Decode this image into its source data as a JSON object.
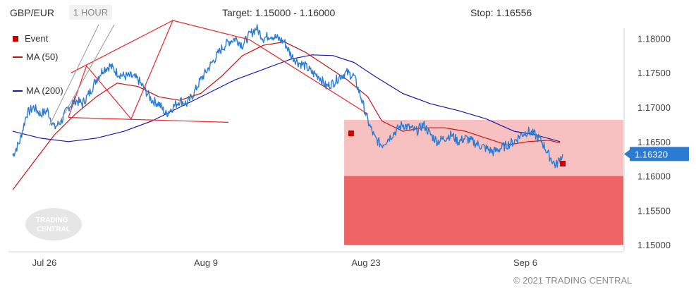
{
  "header": {
    "symbol": "GBP/EUR",
    "timeframe": "1 HOUR",
    "target": "Target: 1.15000 - 1.16000",
    "stop": "Stop: 1.16556"
  },
  "legend": {
    "event": "Event",
    "ma50": "MA (50)",
    "ma200": "MA (200)"
  },
  "watermark": {
    "line1": "TRADING",
    "line2": "CENTRAL"
  },
  "copyright": "© 2021 TRADING CENTRAL",
  "colors": {
    "price": "#2a7bd1",
    "ma50": "#cc1111",
    "ma200": "#1a1aaa",
    "pattern": "#e8262a",
    "stop_zone": "#f7c1c1",
    "target_zone": "#ee6363",
    "event": "#cc0000",
    "badge": "#2a7bd1"
  },
  "chart_data": {
    "type": "line",
    "y_ticks": [
      "1.18000",
      "1.17500",
      "1.17000",
      "1.16500",
      "1.16000",
      "1.15500",
      "1.15000"
    ],
    "x_ticks": [
      "Jul 26",
      "Aug 9",
      "Aug 23",
      "Sep 6"
    ],
    "ylim": [
      1.1495,
      1.1825
    ],
    "last_price": "1.16320",
    "stop_zone": [
      1.16,
      1.16815
    ],
    "target_zone": [
      1.15,
      1.16
    ],
    "series": [
      {
        "name": "Price",
        "points": [
          [
            0,
            1.163
          ],
          [
            5,
            1.165
          ],
          [
            10,
            1.169
          ],
          [
            15,
            1.17
          ],
          [
            20,
            1.169
          ],
          [
            25,
            1.1695
          ],
          [
            30,
            1.167
          ],
          [
            35,
            1.168
          ],
          [
            40,
            1.17
          ],
          [
            45,
            1.171
          ],
          [
            50,
            1.1705
          ],
          [
            55,
            1.172
          ],
          [
            60,
            1.174
          ],
          [
            65,
            1.1755
          ],
          [
            70,
            1.176
          ],
          [
            75,
            1.175
          ],
          [
            80,
            1.1745
          ],
          [
            85,
            1.1745
          ],
          [
            90,
            1.174
          ],
          [
            95,
            1.1725
          ],
          [
            100,
            1.171
          ],
          [
            105,
            1.1705
          ],
          [
            110,
            1.169
          ],
          [
            115,
            1.17
          ],
          [
            120,
            1.171
          ],
          [
            125,
            1.1705
          ],
          [
            130,
            1.172
          ],
          [
            135,
            1.174
          ],
          [
            140,
            1.1755
          ],
          [
            145,
            1.177
          ],
          [
            150,
            1.1785
          ],
          [
            155,
            1.1795
          ],
          [
            160,
            1.18
          ],
          [
            165,
            1.179
          ],
          [
            170,
            1.1805
          ],
          [
            175,
            1.1815
          ],
          [
            180,
            1.18
          ],
          [
            185,
            1.1805
          ],
          [
            190,
            1.18
          ],
          [
            195,
            1.1795
          ],
          [
            200,
            1.1775
          ],
          [
            205,
            1.1765
          ],
          [
            210,
            1.176
          ],
          [
            215,
            1.175
          ],
          [
            220,
            1.1745
          ],
          [
            225,
            1.173
          ],
          [
            230,
            1.1735
          ],
          [
            235,
            1.1745
          ],
          [
            240,
            1.175
          ],
          [
            245,
            1.1745
          ],
          [
            250,
            1.1715
          ],
          [
            255,
            1.168
          ],
          [
            260,
            1.1655
          ],
          [
            265,
            1.1645
          ],
          [
            270,
            1.1655
          ],
          [
            275,
            1.1665
          ],
          [
            280,
            1.1675
          ],
          [
            285,
            1.167
          ],
          [
            290,
            1.1665
          ],
          [
            295,
            1.1675
          ],
          [
            300,
            1.166
          ],
          [
            305,
            1.165
          ],
          [
            310,
            1.1655
          ],
          [
            315,
            1.166
          ],
          [
            320,
            1.165
          ],
          [
            325,
            1.1655
          ],
          [
            330,
            1.165
          ],
          [
            335,
            1.1645
          ],
          [
            340,
            1.164
          ],
          [
            345,
            1.1635
          ],
          [
            350,
            1.164
          ],
          [
            355,
            1.1645
          ],
          [
            360,
            1.165
          ],
          [
            365,
            1.166
          ],
          [
            370,
            1.1665
          ],
          [
            375,
            1.166
          ],
          [
            380,
            1.165
          ],
          [
            385,
            1.163
          ],
          [
            390,
            1.1615
          ],
          [
            395,
            1.1632
          ]
        ]
      },
      {
        "name": "MA (50)",
        "points": [
          [
            0,
            1.158
          ],
          [
            15,
            1.162
          ],
          [
            30,
            1.166
          ],
          [
            45,
            1.169
          ],
          [
            60,
            1.1715
          ],
          [
            75,
            1.1735
          ],
          [
            90,
            1.173
          ],
          [
            105,
            1.1715
          ],
          [
            120,
            1.171
          ],
          [
            135,
            1.172
          ],
          [
            150,
            1.1745
          ],
          [
            165,
            1.1775
          ],
          [
            180,
            1.179
          ],
          [
            195,
            1.1795
          ],
          [
            210,
            1.178
          ],
          [
            225,
            1.176
          ],
          [
            240,
            1.174
          ],
          [
            255,
            1.1715
          ],
          [
            265,
            1.168
          ],
          [
            280,
            1.1665
          ],
          [
            295,
            1.167
          ],
          [
            310,
            1.167
          ],
          [
            325,
            1.1665
          ],
          [
            340,
            1.1655
          ],
          [
            355,
            1.1645
          ],
          [
            370,
            1.165
          ],
          [
            385,
            1.1652
          ],
          [
            393,
            1.1648
          ]
        ]
      },
      {
        "name": "MA (200)",
        "points": [
          [
            0,
            1.1665
          ],
          [
            20,
            1.1655
          ],
          [
            40,
            1.165
          ],
          [
            60,
            1.1655
          ],
          [
            80,
            1.1665
          ],
          [
            100,
            1.168
          ],
          [
            120,
            1.17
          ],
          [
            140,
            1.172
          ],
          [
            160,
            1.174
          ],
          [
            180,
            1.1755
          ],
          [
            200,
            1.177
          ],
          [
            215,
            1.1776
          ],
          [
            230,
            1.1775
          ],
          [
            245,
            1.1765
          ],
          [
            260,
            1.1745
          ],
          [
            280,
            1.172
          ],
          [
            300,
            1.1705
          ],
          [
            320,
            1.1695
          ],
          [
            340,
            1.1683
          ],
          [
            360,
            1.1665
          ],
          [
            375,
            1.166
          ],
          [
            393,
            1.165
          ]
        ]
      }
    ],
    "pattern_lines": [
      [
        [
          42,
          1.175
        ],
        [
          115,
          1.1826
        ]
      ],
      [
        [
          40,
          1.1685
        ],
        [
          155,
          1.1678
        ]
      ],
      [
        [
          40,
          1.1685
        ],
        [
          53,
          1.176
        ],
        [
          85,
          1.1683
        ],
        [
          115,
          1.1826
        ],
        [
          170,
          1.1798
        ],
        [
          255,
          1.169
        ]
      ]
    ],
    "events": [
      [
        243,
        1.1662
      ],
      [
        395,
        1.1618
      ]
    ]
  }
}
